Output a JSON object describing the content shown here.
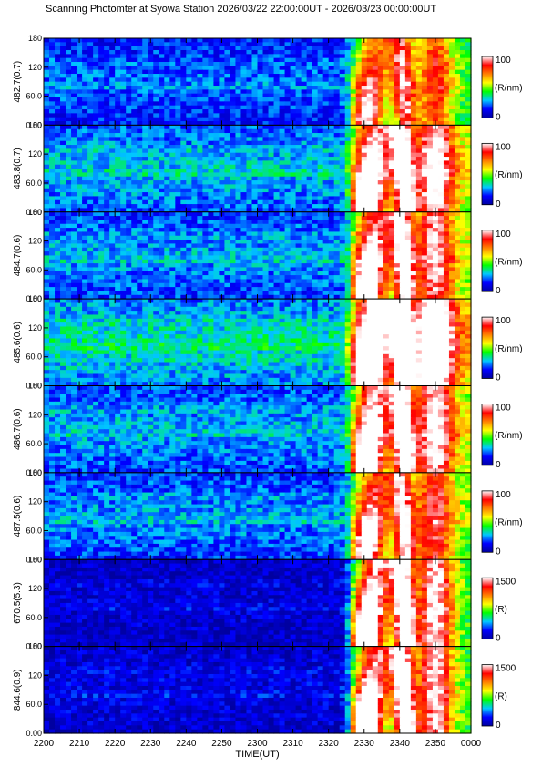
{
  "chart_data": {
    "type": "heatmap",
    "title": "Scanning Photomter at Syowa Station 2026/03/22 22:00:00UT - 2026/03/23 00:00:00UT",
    "xlabel": "TIME(UT)",
    "x_ticks": [
      "2200",
      "2210",
      "2220",
      "2230",
      "2240",
      "2250",
      "2300",
      "2310",
      "2320",
      "2330",
      "2340",
      "2350",
      "0000"
    ],
    "y_ticks": [
      "0.00",
      "60.0",
      "120",
      "180"
    ],
    "ylim": [
      0,
      180
    ],
    "colormap": [
      "#0000a0",
      "#0000ff",
      "#00c8ff",
      "#00ff00",
      "#ffff00",
      "#ff8000",
      "#ff0000",
      "#ffffff"
    ],
    "panels": [
      {
        "ylabel": "482.7(0.7)",
        "cbar_label": "(R/nm)",
        "cbar_min": "0",
        "cbar_max": "100",
        "background": 0.22,
        "aurora_intensity": 0.65
      },
      {
        "ylabel": "483.8(0.7)",
        "cbar_label": "(R/nm)",
        "cbar_min": "0",
        "cbar_max": "100",
        "background": 0.3,
        "aurora_intensity": 0.85
      },
      {
        "ylabel": "484.7(0.6)",
        "cbar_label": "(R/nm)",
        "cbar_min": "0",
        "cbar_max": "100",
        "background": 0.27,
        "aurora_intensity": 0.8
      },
      {
        "ylabel": "485.6(0.6)",
        "cbar_label": "(R/nm)",
        "cbar_min": "0",
        "cbar_max": "100",
        "background": 0.35,
        "aurora_intensity": 1.0
      },
      {
        "ylabel": "486.7(0.6)",
        "cbar_label": "(R/nm)",
        "cbar_min": "0",
        "cbar_max": "100",
        "background": 0.28,
        "aurora_intensity": 0.85
      },
      {
        "ylabel": "487.5(0.6)",
        "cbar_label": "(R/nm)",
        "cbar_min": "0",
        "cbar_max": "100",
        "background": 0.26,
        "aurora_intensity": 0.7
      },
      {
        "ylabel": "670.5(5.3)",
        "cbar_label": "(R)",
        "cbar_min": "0",
        "cbar_max": "1500",
        "background": 0.08,
        "aurora_intensity": 1.0
      },
      {
        "ylabel": "844.6(0.9)",
        "cbar_label": "(R)",
        "cbar_min": "0",
        "cbar_max": "1500",
        "background": 0.1,
        "aurora_intensity": 0.95
      }
    ]
  }
}
